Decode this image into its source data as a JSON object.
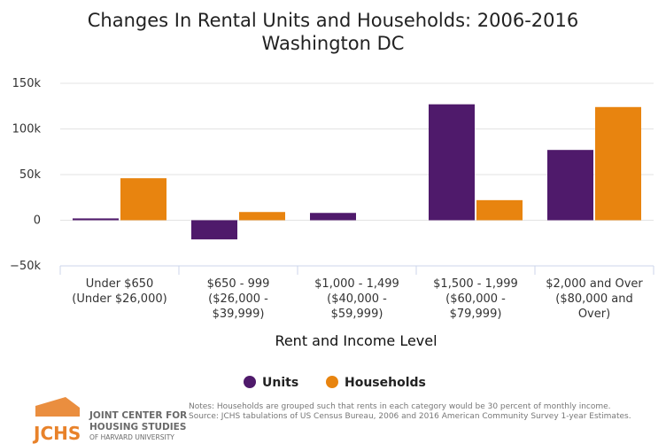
{
  "chart_data": {
    "type": "bar",
    "title": "Changes In Rental Units and Households: 2006-2016",
    "subtitle": "Washington DC",
    "xlabel": "Rent and Income Level",
    "ylabel": "",
    "categories": [
      [
        "Under $650",
        "(Under $26,000)"
      ],
      [
        "$650 - 999",
        "($26,000 -",
        "$39,999)"
      ],
      [
        "$1,000 - 1,499",
        "($40,000 -",
        "$59,999)"
      ],
      [
        "$1,500 - 1,999",
        "($60,000 -",
        "$79,999)"
      ],
      [
        "$2,000 and Over",
        "($80,000 and",
        "Over)"
      ]
    ],
    "series": [
      {
        "name": "Units",
        "color": "#4f1a6b",
        "values": [
          2000,
          -21000,
          8000,
          127000,
          77000
        ]
      },
      {
        "name": "Households",
        "color": "#e8840f",
        "values": [
          46000,
          9000,
          0,
          22000,
          124000
        ]
      }
    ],
    "ylim": [
      -50000,
      150000
    ],
    "yticks": [
      -50000,
      0,
      50000,
      100000,
      150000
    ],
    "ytick_labels": [
      "−50k",
      "0",
      "50k",
      "100k",
      "150k"
    ],
    "grid": true,
    "legend_position": "bottom-center"
  },
  "notes": [
    "Notes: Households are grouped such that rents in each category would be 30 percent of monthly income.",
    "Source: JCHS tabulations of US Census Bureau, 2006 and 2016 American Community Survey 1-year Estimates."
  ],
  "logo": {
    "abbr": "JCHS",
    "lines": [
      "JOINT CENTER FOR",
      "HOUSING STUDIES",
      "OF HARVARD UNIVERSITY"
    ],
    "color": "#e8822a"
  }
}
